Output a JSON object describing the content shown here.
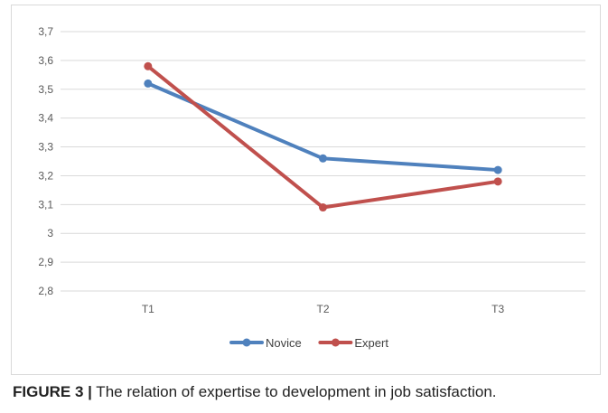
{
  "chart_data": {
    "type": "line",
    "categories": [
      "T1",
      "T2",
      "T3"
    ],
    "series": [
      {
        "name": "Novice",
        "values": [
          3.52,
          3.26,
          3.22
        ],
        "color": "#4f81bd"
      },
      {
        "name": "Expert",
        "values": [
          3.58,
          3.09,
          3.18
        ],
        "color": "#c0504d"
      }
    ],
    "ylim": [
      2.8,
      3.7
    ],
    "yticks": [
      2.8,
      2.9,
      3.0,
      3.1,
      3.2,
      3.3,
      3.4,
      3.5,
      3.6,
      3.7
    ],
    "ytick_labels": [
      "2,8",
      "2,9",
      "3",
      "3,1",
      "3,2",
      "3,3",
      "3,4",
      "3,5",
      "3,6",
      "3,7"
    ],
    "grid": true,
    "legend_position": "bottom"
  },
  "caption": {
    "label": "FIGURE 3 |",
    "text": " The relation of expertise to development in job satisfaction."
  }
}
